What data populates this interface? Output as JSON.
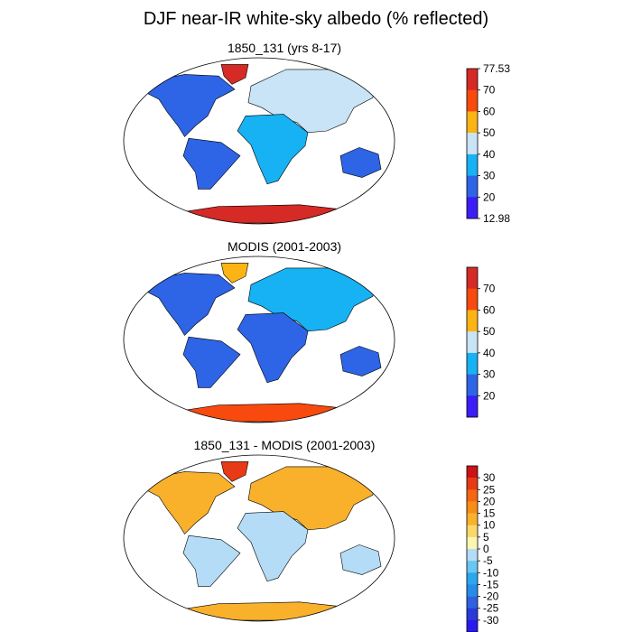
{
  "title": "DJF near-IR white-sky albedo (% reflected)",
  "colors": {
    "ocean": "#ffffff",
    "outline": "#000000",
    "albedo_scale": [
      "#3a1ef5",
      "#2e64e6",
      "#16b2f3",
      "#c8e4f6",
      "#fbb414",
      "#f84a0e",
      "#d52a26"
    ],
    "diff_scale": [
      "#2a1aee",
      "#2a3ad8",
      "#2f62e0",
      "#258ce8",
      "#2aa8ee",
      "#6ac6f2",
      "#b4dcf6",
      "#fbf6b0",
      "#fbd86a",
      "#f9b12c",
      "#f88d17",
      "#f56611",
      "#e73a16",
      "#cd1216"
    ]
  },
  "panels": [
    {
      "id": "model",
      "subtitle": "1850_131 (yrs 8-17)",
      "colorbar": {
        "kind": "albedo",
        "labels": [
          "77.53",
          "70",
          "60",
          "50",
          "40",
          "30",
          "20",
          "12.98"
        ],
        "label_positions": [
          0,
          1,
          2,
          3,
          4,
          5,
          6,
          7
        ]
      }
    },
    {
      "id": "obs",
      "subtitle": "MODIS (2001-2003)",
      "colorbar": {
        "kind": "albedo",
        "labels": [
          "70",
          "60",
          "50",
          "40",
          "30",
          "20"
        ],
        "label_positions": [
          1,
          2,
          3,
          4,
          5,
          6
        ]
      }
    },
    {
      "id": "diff",
      "subtitle": "1850_131 - MODIS (2001-2003)",
      "colorbar": {
        "kind": "diff",
        "labels": [
          "30",
          "25",
          "20",
          "15",
          "10",
          "5",
          "0",
          "-5",
          "-10",
          "-15",
          "-20",
          "-25",
          "-30"
        ],
        "label_positions": [
          1,
          2,
          3,
          4,
          5,
          6,
          7,
          8,
          9,
          10,
          11,
          12,
          13
        ]
      }
    }
  ]
}
